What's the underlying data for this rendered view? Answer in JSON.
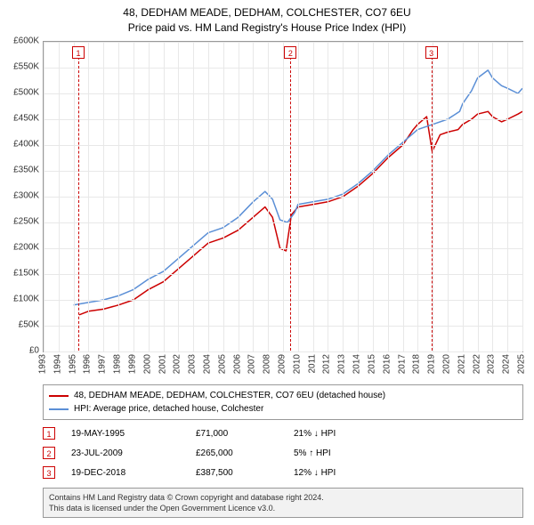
{
  "title": {
    "line1": "48, DEDHAM MEADE, DEDHAM, COLCHESTER, CO7 6EU",
    "line2": "Price paid vs. HM Land Registry's House Price Index (HPI)"
  },
  "chart": {
    "type": "line",
    "background_color": "#ffffff",
    "grid_color": "#e8e8e8",
    "border_color": "#999999",
    "x": {
      "min": 1993,
      "max": 2025,
      "ticks": [
        1993,
        1994,
        1995,
        1996,
        1997,
        1998,
        1999,
        2000,
        2001,
        2002,
        2003,
        2004,
        2005,
        2006,
        2007,
        2008,
        2009,
        2010,
        2011,
        2012,
        2013,
        2014,
        2015,
        2016,
        2017,
        2018,
        2019,
        2020,
        2021,
        2022,
        2023,
        2024,
        2025
      ]
    },
    "y": {
      "min": 0,
      "max": 600000,
      "ticks": [
        0,
        50000,
        100000,
        150000,
        200000,
        250000,
        300000,
        350000,
        400000,
        450000,
        500000,
        550000,
        600000
      ],
      "tick_labels": [
        "£0",
        "£50K",
        "£100K",
        "£150K",
        "£200K",
        "£250K",
        "£300K",
        "£350K",
        "£400K",
        "£450K",
        "£500K",
        "£550K",
        "£600K"
      ]
    },
    "series": [
      {
        "name": "price-paid",
        "label": "48, DEDHAM MEADE, DEDHAM, COLCHESTER, CO7 6EU (detached house)",
        "color": "#cc0000",
        "line_width": 1.5,
        "data": [
          [
            1995.38,
            71000
          ],
          [
            1996,
            78000
          ],
          [
            1997,
            82000
          ],
          [
            1998,
            90000
          ],
          [
            1999,
            100000
          ],
          [
            2000,
            120000
          ],
          [
            2001,
            135000
          ],
          [
            2002,
            160000
          ],
          [
            2003,
            185000
          ],
          [
            2004,
            210000
          ],
          [
            2005,
            220000
          ],
          [
            2006,
            235000
          ],
          [
            2007,
            260000
          ],
          [
            2007.8,
            280000
          ],
          [
            2008.3,
            260000
          ],
          [
            2008.8,
            200000
          ],
          [
            2009.2,
            195000
          ],
          [
            2009.56,
            265000
          ],
          [
            2010,
            280000
          ],
          [
            2011,
            285000
          ],
          [
            2012,
            290000
          ],
          [
            2013,
            300000
          ],
          [
            2014,
            320000
          ],
          [
            2015,
            345000
          ],
          [
            2016,
            375000
          ],
          [
            2017,
            400000
          ],
          [
            2017.7,
            430000
          ],
          [
            2018,
            440000
          ],
          [
            2018.6,
            455000
          ],
          [
            2018.97,
            387500
          ],
          [
            2019.5,
            420000
          ],
          [
            2020,
            425000
          ],
          [
            2020.7,
            430000
          ],
          [
            2021,
            440000
          ],
          [
            2021.6,
            450000
          ],
          [
            2022,
            460000
          ],
          [
            2022.7,
            465000
          ],
          [
            2023,
            455000
          ],
          [
            2023.6,
            445000
          ],
          [
            2024,
            450000
          ],
          [
            2024.7,
            460000
          ],
          [
            2025,
            465000
          ]
        ]
      },
      {
        "name": "hpi",
        "label": "HPI: Average price, detached house, Colchester",
        "color": "#5b8fd6",
        "line_width": 1.5,
        "data": [
          [
            1995,
            90000
          ],
          [
            1996,
            95000
          ],
          [
            1997,
            100000
          ],
          [
            1998,
            108000
          ],
          [
            1999,
            120000
          ],
          [
            2000,
            140000
          ],
          [
            2001,
            155000
          ],
          [
            2002,
            180000
          ],
          [
            2003,
            205000
          ],
          [
            2004,
            230000
          ],
          [
            2005,
            240000
          ],
          [
            2006,
            260000
          ],
          [
            2007,
            290000
          ],
          [
            2007.8,
            310000
          ],
          [
            2008.3,
            295000
          ],
          [
            2008.8,
            255000
          ],
          [
            2009.3,
            250000
          ],
          [
            2009.8,
            270000
          ],
          [
            2010,
            285000
          ],
          [
            2011,
            290000
          ],
          [
            2012,
            295000
          ],
          [
            2013,
            305000
          ],
          [
            2014,
            325000
          ],
          [
            2015,
            350000
          ],
          [
            2016,
            380000
          ],
          [
            2017,
            405000
          ],
          [
            2018,
            430000
          ],
          [
            2019,
            440000
          ],
          [
            2020,
            450000
          ],
          [
            2020.8,
            465000
          ],
          [
            2021,
            480000
          ],
          [
            2021.6,
            505000
          ],
          [
            2022,
            530000
          ],
          [
            2022.7,
            545000
          ],
          [
            2023,
            530000
          ],
          [
            2023.6,
            515000
          ],
          [
            2024,
            510000
          ],
          [
            2024.7,
            500000
          ],
          [
            2025,
            510000
          ]
        ]
      }
    ],
    "markers": [
      {
        "n": "1",
        "x": 1995.38,
        "date": "19-MAY-1995",
        "price": "£71,000",
        "diff": "21% ↓ HPI"
      },
      {
        "n": "2",
        "x": 2009.56,
        "date": "23-JUL-2009",
        "price": "£265,000",
        "diff": "5% ↑ HPI"
      },
      {
        "n": "3",
        "x": 2018.97,
        "date": "19-DEC-2018",
        "price": "£387,500",
        "diff": "12% ↓ HPI"
      }
    ],
    "marker_style": {
      "border_color": "#cc0000",
      "fill_color": "#ffffff",
      "text_color": "#cc0000",
      "size": 14
    }
  },
  "legend": {
    "border_color": "#999999"
  },
  "footer": {
    "line1": "Contains HM Land Registry data © Crown copyright and database right 2024.",
    "line2": "This data is licensed under the Open Government Licence v3.0."
  },
  "fonts": {
    "title_size": 12,
    "axis_label_size": 10,
    "legend_size": 10,
    "footer_size": 9
  }
}
